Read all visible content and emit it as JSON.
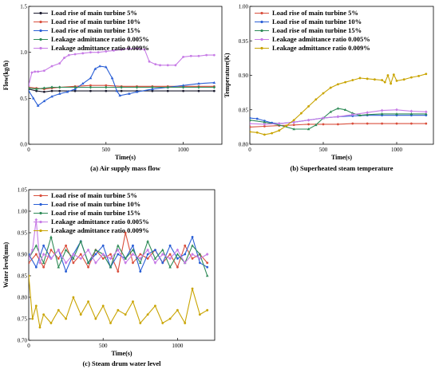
{
  "chart_data": [
    {
      "type": "line",
      "caption": "(a) Air supply mass flow",
      "xlabel": "Time(s)",
      "ylabel": "Flow(kg/h)",
      "xlim": [
        0,
        1250
      ],
      "ylim": [
        0,
        1.5
      ],
      "xticks": [
        0,
        500,
        1000
      ],
      "yticks": [
        0.0,
        0.5,
        1.0,
        1.5
      ],
      "x_tick_labels": [
        "0",
        "500",
        "1000"
      ],
      "y_tick_labels": [
        "0.0",
        "0.5",
        "1.0",
        "1.5"
      ],
      "legend_position": "top-left",
      "colors": [
        "#1a1a2e",
        "#d94f3d",
        "#2a5fd6",
        "#2e8b57",
        "#c77ce6"
      ],
      "series": [
        {
          "name": "Load rise of main turbine 5%",
          "x": [
            0,
            50,
            100,
            150,
            200,
            300,
            400,
            500,
            600,
            700,
            800,
            900,
            1000,
            1100,
            1200
          ],
          "y": [
            0.6,
            0.58,
            0.57,
            0.58,
            0.58,
            0.58,
            0.58,
            0.58,
            0.58,
            0.58,
            0.58,
            0.58,
            0.58,
            0.58,
            0.58
          ]
        },
        {
          "name": "Load rise of main turbine 10%",
          "x": [
            0,
            50,
            100,
            150,
            200,
            300,
            400,
            500,
            600,
            700,
            800,
            900,
            1000,
            1100,
            1200
          ],
          "y": [
            0.62,
            0.61,
            0.6,
            0.61,
            0.62,
            0.63,
            0.64,
            0.64,
            0.63,
            0.63,
            0.63,
            0.63,
            0.63,
            0.63,
            0.63
          ]
        },
        {
          "name": "Load rise of main turbine 15%",
          "x": [
            0,
            30,
            60,
            100,
            150,
            200,
            250,
            300,
            350,
            400,
            430,
            460,
            500,
            540,
            570,
            590,
            650,
            700,
            800,
            900,
            1000,
            1100,
            1200
          ],
          "y": [
            0.58,
            0.5,
            0.42,
            0.47,
            0.52,
            0.55,
            0.57,
            0.6,
            0.66,
            0.72,
            0.82,
            0.85,
            0.84,
            0.72,
            0.58,
            0.53,
            0.55,
            0.57,
            0.6,
            0.62,
            0.64,
            0.66,
            0.67
          ]
        },
        {
          "name": "Leakage admittance ratio 0.005%",
          "x": [
            0,
            50,
            100,
            150,
            200,
            300,
            400,
            500,
            600,
            700,
            800,
            900,
            1000,
            1100,
            1200
          ],
          "y": [
            0.61,
            0.6,
            0.61,
            0.62,
            0.62,
            0.62,
            0.62,
            0.62,
            0.62,
            0.62,
            0.62,
            0.62,
            0.62,
            0.62,
            0.62
          ]
        },
        {
          "name": "Leakage admittance ratio 0.009%",
          "x": [
            0,
            20,
            40,
            60,
            100,
            150,
            200,
            230,
            260,
            300,
            350,
            400,
            450,
            500,
            550,
            600,
            650,
            700,
            750,
            780,
            820,
            850,
            900,
            950,
            1000,
            1050,
            1100,
            1150,
            1200
          ],
          "y": [
            0.64,
            0.78,
            0.79,
            0.79,
            0.8,
            0.85,
            0.88,
            0.94,
            0.97,
            0.98,
            0.99,
            1.0,
            1.0,
            1.01,
            1.02,
            1.03,
            1.04,
            1.04,
            1.03,
            0.9,
            0.87,
            0.86,
            0.86,
            0.86,
            0.95,
            0.96,
            0.96,
            0.97,
            0.97
          ]
        }
      ]
    },
    {
      "type": "line",
      "caption": "(b) Superheated steam temperature",
      "xlabel": "Time(s)",
      "ylabel": "Temperature(K)",
      "xlim": [
        0,
        1250
      ],
      "ylim": [
        0.8,
        1.0
      ],
      "xticks": [
        0,
        500,
        1000
      ],
      "yticks": [
        0.8,
        0.85,
        0.9,
        0.95,
        1.0
      ],
      "x_tick_labels": [
        "0",
        "500",
        "1000"
      ],
      "y_tick_labels": [
        "0.80",
        "0.85",
        "0.90",
        "0.95",
        "1.00"
      ],
      "legend_position": "top-right",
      "colors": [
        "#d94f3d",
        "#2a5fd6",
        "#2e8b57",
        "#c77ce6",
        "#c9a400"
      ],
      "series": [
        {
          "name": "Load rise of main turbine 5%",
          "x": [
            0,
            100,
            200,
            300,
            400,
            500,
            600,
            700,
            800,
            900,
            1000,
            1100,
            1200
          ],
          "y": [
            0.825,
            0.826,
            0.827,
            0.828,
            0.829,
            0.829,
            0.829,
            0.83,
            0.83,
            0.83,
            0.83,
            0.83,
            0.83
          ]
        },
        {
          "name": "Load rise of main turbine 10%",
          "x": [
            0,
            50,
            100,
            150,
            200,
            300,
            400,
            500,
            600,
            700,
            800,
            900,
            1000,
            1100,
            1200
          ],
          "y": [
            0.838,
            0.837,
            0.834,
            0.831,
            0.83,
            0.832,
            0.835,
            0.838,
            0.84,
            0.841,
            0.842,
            0.842,
            0.842,
            0.842,
            0.842
          ]
        },
        {
          "name": "Load rise of main turbine 15%",
          "x": [
            0,
            100,
            200,
            300,
            400,
            450,
            500,
            550,
            600,
            650,
            700,
            750,
            800,
            900,
            1000,
            1100,
            1200
          ],
          "y": [
            0.835,
            0.832,
            0.828,
            0.822,
            0.822,
            0.828,
            0.838,
            0.847,
            0.852,
            0.85,
            0.845,
            0.842,
            0.843,
            0.844,
            0.844,
            0.844,
            0.844
          ]
        },
        {
          "name": "Leakage admittance ratio 0.005%",
          "x": [
            0,
            100,
            200,
            300,
            400,
            500,
            600,
            700,
            800,
            900,
            1000,
            1100,
            1200
          ],
          "y": [
            0.83,
            0.829,
            0.83,
            0.832,
            0.835,
            0.838,
            0.84,
            0.843,
            0.846,
            0.849,
            0.85,
            0.848,
            0.847
          ]
        },
        {
          "name": "Leakage admittance ratio 0.009%",
          "x": [
            0,
            50,
            100,
            150,
            200,
            250,
            300,
            350,
            400,
            450,
            500,
            550,
            600,
            650,
            700,
            750,
            800,
            850,
            900,
            920,
            940,
            960,
            980,
            1000,
            1050,
            1100,
            1150,
            1200
          ],
          "y": [
            0.818,
            0.817,
            0.814,
            0.816,
            0.82,
            0.827,
            0.835,
            0.845,
            0.855,
            0.865,
            0.874,
            0.882,
            0.887,
            0.89,
            0.893,
            0.896,
            0.895,
            0.894,
            0.893,
            0.89,
            0.9,
            0.888,
            0.901,
            0.892,
            0.894,
            0.897,
            0.899,
            0.902
          ]
        }
      ]
    },
    {
      "type": "line",
      "caption": "(c) Steam drum water level",
      "xlabel": "Time(s)",
      "ylabel": "Water level(mm)",
      "xlim": [
        0,
        1250
      ],
      "ylim": [
        0.7,
        1.05
      ],
      "xticks": [
        0,
        500,
        1000
      ],
      "yticks": [
        0.7,
        0.75,
        0.8,
        0.85,
        0.9,
        0.95,
        1.0,
        1.05
      ],
      "x_tick_labels": [
        "0",
        "500",
        "1000"
      ],
      "y_tick_labels": [
        "0.70",
        "0.75",
        "0.80",
        "0.85",
        "0.90",
        "0.95",
        "1.00",
        "1.05"
      ],
      "legend_position": "top-left",
      "colors": [
        "#d94f3d",
        "#2a5fd6",
        "#2e8b57",
        "#c77ce6",
        "#c9a400"
      ],
      "series": [
        {
          "name": "Load rise of main turbine 5%",
          "x": [
            0,
            50,
            100,
            150,
            200,
            250,
            300,
            350,
            400,
            450,
            500,
            550,
            600,
            650,
            700,
            750,
            800,
            850,
            900,
            950,
            1000,
            1050,
            1100,
            1150,
            1200
          ],
          "y": [
            0.88,
            0.9,
            0.87,
            0.91,
            0.89,
            0.92,
            0.88,
            0.9,
            0.87,
            0.91,
            0.89,
            0.9,
            0.86,
            0.95,
            0.88,
            0.9,
            0.89,
            0.91,
            0.88,
            0.9,
            0.87,
            0.92,
            0.89,
            0.9,
            0.88
          ]
        },
        {
          "name": "Load rise of main turbine 10%",
          "x": [
            0,
            50,
            100,
            150,
            200,
            250,
            300,
            350,
            400,
            450,
            500,
            550,
            600,
            650,
            700,
            750,
            800,
            850,
            900,
            950,
            1000,
            1050,
            1100,
            1150,
            1200
          ],
          "y": [
            0.9,
            0.87,
            0.92,
            0.89,
            0.91,
            0.86,
            0.9,
            0.93,
            0.88,
            0.9,
            0.92,
            0.87,
            0.9,
            0.89,
            0.92,
            0.86,
            0.9,
            0.91,
            0.88,
            0.92,
            0.89,
            0.9,
            0.94,
            0.88,
            0.87
          ]
        },
        {
          "name": "Load rise of main turbine 15%",
          "x": [
            0,
            50,
            100,
            150,
            200,
            250,
            300,
            350,
            400,
            450,
            500,
            550,
            600,
            650,
            700,
            750,
            800,
            850,
            900,
            950,
            1000,
            1050,
            1100,
            1150,
            1200
          ],
          "y": [
            0.89,
            0.92,
            0.88,
            0.94,
            0.87,
            0.91,
            0.89,
            0.93,
            0.88,
            0.91,
            0.9,
            0.87,
            0.92,
            0.89,
            0.91,
            0.88,
            0.93,
            0.89,
            0.91,
            0.87,
            0.9,
            0.88,
            0.92,
            0.9,
            0.85
          ]
        },
        {
          "name": "Leakage admittance ratio 0.005%",
          "x": [
            0,
            25,
            50,
            75,
            100,
            150,
            200,
            250,
            300,
            350,
            400,
            450,
            500,
            550,
            600,
            650,
            700,
            750,
            800,
            850,
            900,
            950,
            1000,
            1050,
            1100,
            1150,
            1200
          ],
          "y": [
            0.89,
            0.91,
            0.98,
            0.88,
            0.9,
            0.89,
            0.91,
            0.88,
            0.9,
            0.89,
            0.91,
            0.88,
            0.9,
            0.89,
            0.91,
            0.88,
            0.9,
            0.89,
            0.91,
            0.88,
            0.9,
            0.89,
            0.91,
            0.88,
            0.9,
            0.89,
            0.9
          ]
        },
        {
          "name": "Leakage admittance ratio 0.009%",
          "x": [
            0,
            25,
            50,
            75,
            100,
            150,
            200,
            250,
            300,
            350,
            400,
            450,
            500,
            550,
            600,
            650,
            700,
            750,
            800,
            850,
            900,
            950,
            1000,
            1050,
            1100,
            1150,
            1200
          ],
          "y": [
            0.85,
            0.75,
            0.78,
            0.73,
            0.76,
            0.74,
            0.77,
            0.75,
            0.8,
            0.76,
            0.79,
            0.75,
            0.78,
            0.74,
            0.77,
            0.76,
            0.79,
            0.74,
            0.76,
            0.78,
            0.74,
            0.75,
            0.77,
            0.74,
            0.82,
            0.76,
            0.77
          ]
        }
      ]
    }
  ]
}
